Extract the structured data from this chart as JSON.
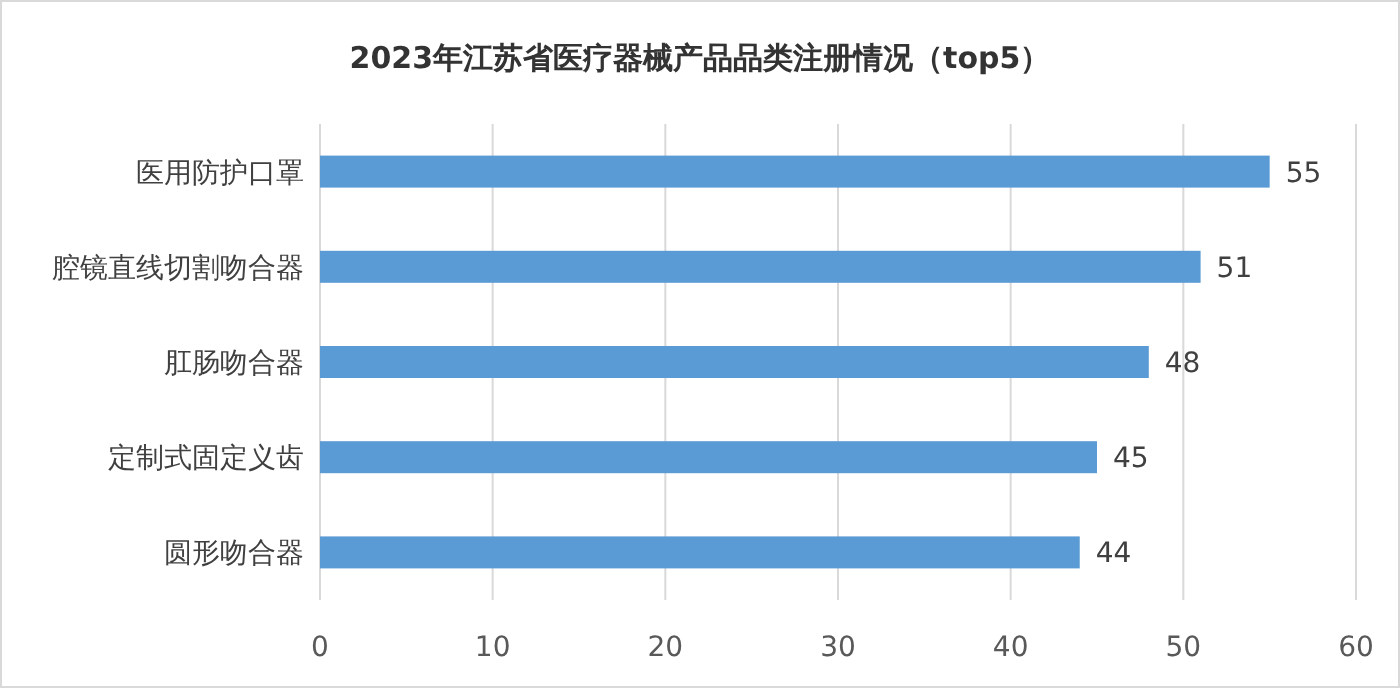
{
  "chart_data": {
    "type": "bar",
    "orientation": "horizontal",
    "title": "2023年江苏省医疗器械产品品类注册情况（top5）",
    "categories": [
      "医用防护口罩",
      "腔镜直线切割吻合器",
      "肛肠吻合器",
      "定制式固定义齿",
      "圆形吻合器"
    ],
    "values": [
      55,
      51,
      48,
      45,
      44
    ],
    "color": "#5b9bd5",
    "xlim": [
      0,
      60
    ],
    "xticks": [
      0,
      10,
      20,
      30,
      40,
      50,
      60
    ],
    "grid": "x",
    "data_labels": true
  }
}
